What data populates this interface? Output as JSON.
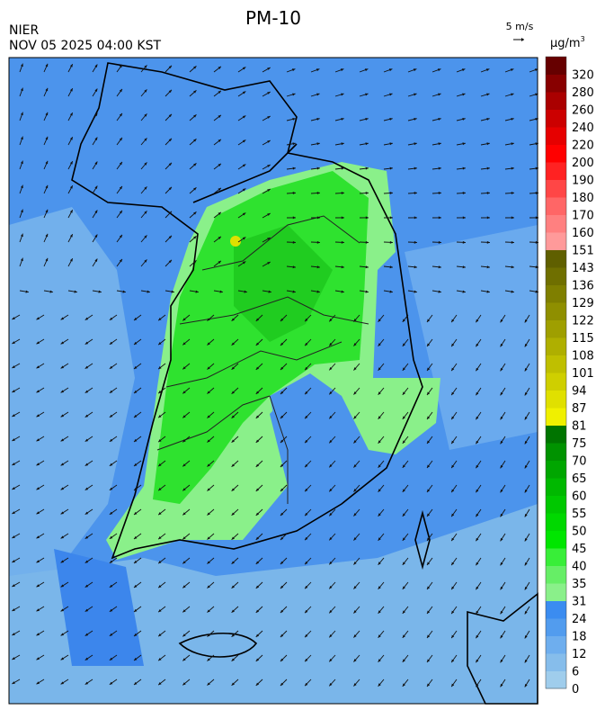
{
  "header": {
    "title": "PM-10",
    "agency": "NIER",
    "datetime": "NOV 05 2025 04:00 KST",
    "wind_scale": "5 m/s",
    "unit_base": "μg/m",
    "unit_exponent": "3"
  },
  "legend": {
    "levels": [
      {
        "value": 0,
        "color": "#9fcdec"
      },
      {
        "value": 6,
        "color": "#86bdeb"
      },
      {
        "value": 12,
        "color": "#6eaeee"
      },
      {
        "value": 18,
        "color": "#529cee"
      },
      {
        "value": 24,
        "color": "#3b8cf0"
      },
      {
        "value": 31,
        "color": "#8af08a"
      },
      {
        "value": 35,
        "color": "#66ee66"
      },
      {
        "value": 40,
        "color": "#38ee38"
      },
      {
        "value": 45,
        "color": "#00e600"
      },
      {
        "value": 50,
        "color": "#00d800"
      },
      {
        "value": 55,
        "color": "#00c800"
      },
      {
        "value": 60,
        "color": "#00b800"
      },
      {
        "value": 65,
        "color": "#00a600"
      },
      {
        "value": 70,
        "color": "#009200"
      },
      {
        "value": 75,
        "color": "#007400"
      },
      {
        "value": 81,
        "color": "#f0f000"
      },
      {
        "value": 87,
        "color": "#e0e000"
      },
      {
        "value": 94,
        "color": "#cfcf00"
      },
      {
        "value": 101,
        "color": "#bfbf00"
      },
      {
        "value": 108,
        "color": "#afaf00"
      },
      {
        "value": 115,
        "color": "#9f9f00"
      },
      {
        "value": 122,
        "color": "#8f8f00"
      },
      {
        "value": 129,
        "color": "#7f7f00"
      },
      {
        "value": 136,
        "color": "#6f6f00"
      },
      {
        "value": 143,
        "color": "#5f5f00"
      },
      {
        "value": 151,
        "color": "#ff9a9a"
      },
      {
        "value": 160,
        "color": "#ff8080"
      },
      {
        "value": 170,
        "color": "#ff6666"
      },
      {
        "value": 180,
        "color": "#ff4646"
      },
      {
        "value": 190,
        "color": "#ff2222"
      },
      {
        "value": 200,
        "color": "#ff0000"
      },
      {
        "value": 220,
        "color": "#e60000"
      },
      {
        "value": 240,
        "color": "#cc0000"
      },
      {
        "value": 260,
        "color": "#aa0000"
      },
      {
        "value": 280,
        "color": "#880000"
      },
      {
        "value": 320,
        "color": "#660000"
      }
    ]
  }
}
